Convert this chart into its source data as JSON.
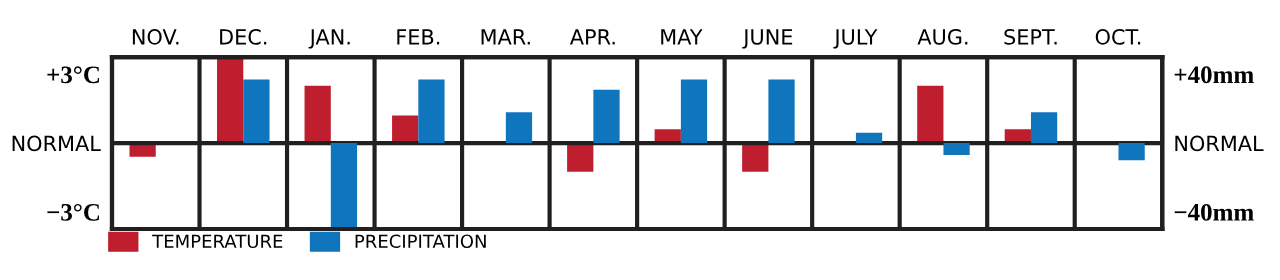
{
  "chart_data": {
    "type": "bar",
    "categories": [
      "NOV.",
      "DEC.",
      "JAN.",
      "FEB.",
      "MAR.",
      "APR.",
      "MAY",
      "JUNE",
      "JULY",
      "AUG.",
      "SEPT.",
      "OCT."
    ],
    "series": [
      {
        "name": "TEMPERATURE",
        "color": "#be1e2d",
        "values": [
          -0.6,
          3.7,
          2.5,
          1.2,
          null,
          -1.25,
          0.6,
          -1.25,
          null,
          2.5,
          0.6,
          null
        ]
      },
      {
        "name": "PRECIPITATION",
        "color": "#0f75bc",
        "axis": "y2",
        "values": [
          null,
          37,
          -49,
          37,
          18,
          31,
          37,
          37,
          6,
          -7,
          18,
          -10
        ]
      }
    ],
    "ylim": [
      -3.75,
      3.75
    ],
    "yticks": [
      {
        "value": -3,
        "label": "−3°C"
      },
      {
        "value": 0,
        "label": "NORMAL"
      },
      {
        "value": 3,
        "label": "+3°C"
      }
    ],
    "y2lim": [
      -50,
      50
    ],
    "y2ticks": [
      {
        "value": -40,
        "label": "−40mm"
      },
      {
        "value": 0,
        "label": "NORMAL"
      },
      {
        "value": 40,
        "label": "+40mm"
      }
    ],
    "ref_lines": [
      {
        "axis": "y",
        "value": 0,
        "color": "#231f20"
      }
    ],
    "grid": "x",
    "legend": "bottom left"
  }
}
